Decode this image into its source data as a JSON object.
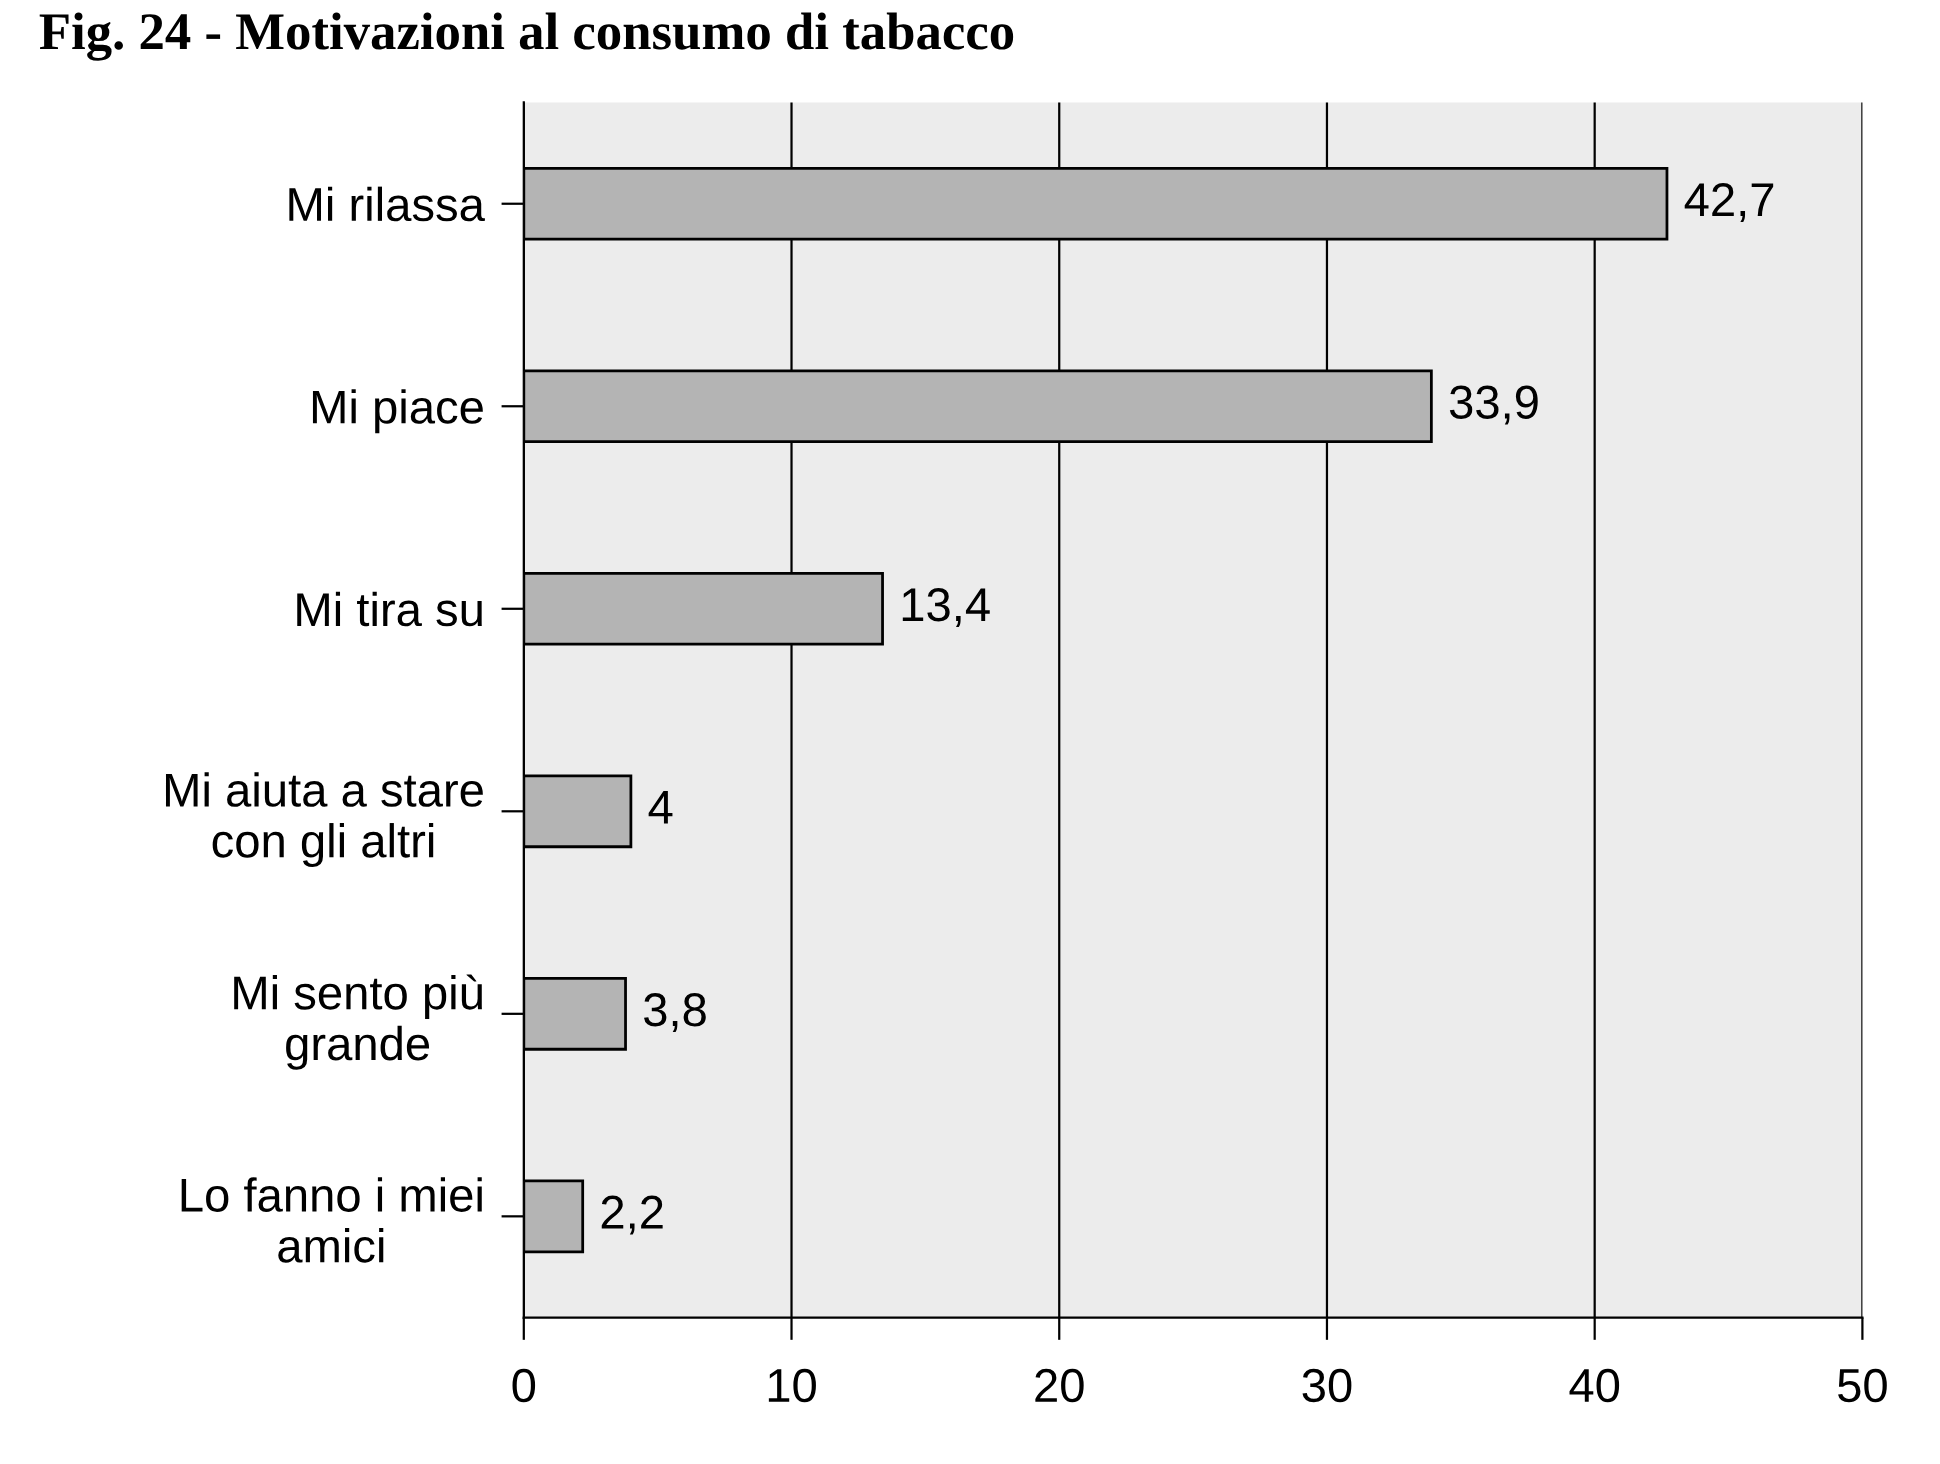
{
  "chart_data": {
    "type": "bar",
    "orientation": "horizontal",
    "title": "Fig. 24 - Motivazioni al consumo di tabacco",
    "categories": [
      "Mi rilassa",
      "Mi piace",
      "Mi tira su",
      "Mi aiuta a stare\ncon gli altri",
      "Mi sento più\ngrande",
      "Lo fanno i miei\namici"
    ],
    "values": [
      42.7,
      33.9,
      13.4,
      4,
      3.8,
      2.2
    ],
    "value_labels": [
      "42,7",
      "33,9",
      "13,4",
      "4",
      "3,8",
      "2,2"
    ],
    "color": "#b4b4b4",
    "xlim": [
      0,
      50
    ],
    "xticks": [
      0,
      10,
      20,
      30,
      40,
      50
    ],
    "grid": "x"
  }
}
